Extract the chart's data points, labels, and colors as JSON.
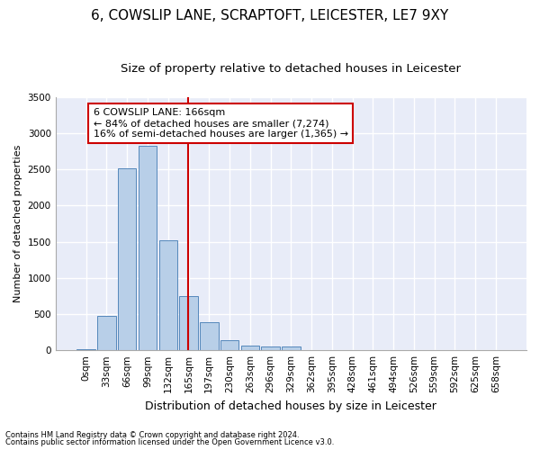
{
  "title": "6, COWSLIP LANE, SCRAPTOFT, LEICESTER, LE7 9XY",
  "subtitle": "Size of property relative to detached houses in Leicester",
  "xlabel": "Distribution of detached houses by size in Leicester",
  "ylabel": "Number of detached properties",
  "footnote1": "Contains HM Land Registry data © Crown copyright and database right 2024.",
  "footnote2": "Contains public sector information licensed under the Open Government Licence v3.0.",
  "bar_labels": [
    "0sqm",
    "33sqm",
    "66sqm",
    "99sqm",
    "132sqm",
    "165sqm",
    "197sqm",
    "230sqm",
    "263sqm",
    "296sqm",
    "329sqm",
    "362sqm",
    "395sqm",
    "428sqm",
    "461sqm",
    "494sqm",
    "526sqm",
    "559sqm",
    "592sqm",
    "625sqm",
    "658sqm"
  ],
  "bar_values": [
    20,
    480,
    2510,
    2820,
    1520,
    750,
    390,
    140,
    65,
    50,
    50,
    0,
    0,
    0,
    0,
    0,
    0,
    0,
    0,
    0,
    0
  ],
  "bar_color": "#b8cfe8",
  "bar_edge_color": "#5588bb",
  "annotation_box_text": "6 COWSLIP LANE: 166sqm\n← 84% of detached houses are smaller (7,274)\n16% of semi-detached houses are larger (1,365) →",
  "annotation_line_color": "#cc0000",
  "annotation_box_edge_color": "#cc0000",
  "ylim": [
    0,
    3500
  ],
  "yticks": [
    0,
    500,
    1000,
    1500,
    2000,
    2500,
    3000,
    3500
  ],
  "bg_color": "#e8ecf8",
  "grid_color": "#ffffff",
  "title_fontsize": 11,
  "subtitle_fontsize": 9.5,
  "xlabel_fontsize": 9,
  "ylabel_fontsize": 8,
  "tick_fontsize": 7.5,
  "footnote_fontsize": 6,
  "ann_fontsize": 8
}
